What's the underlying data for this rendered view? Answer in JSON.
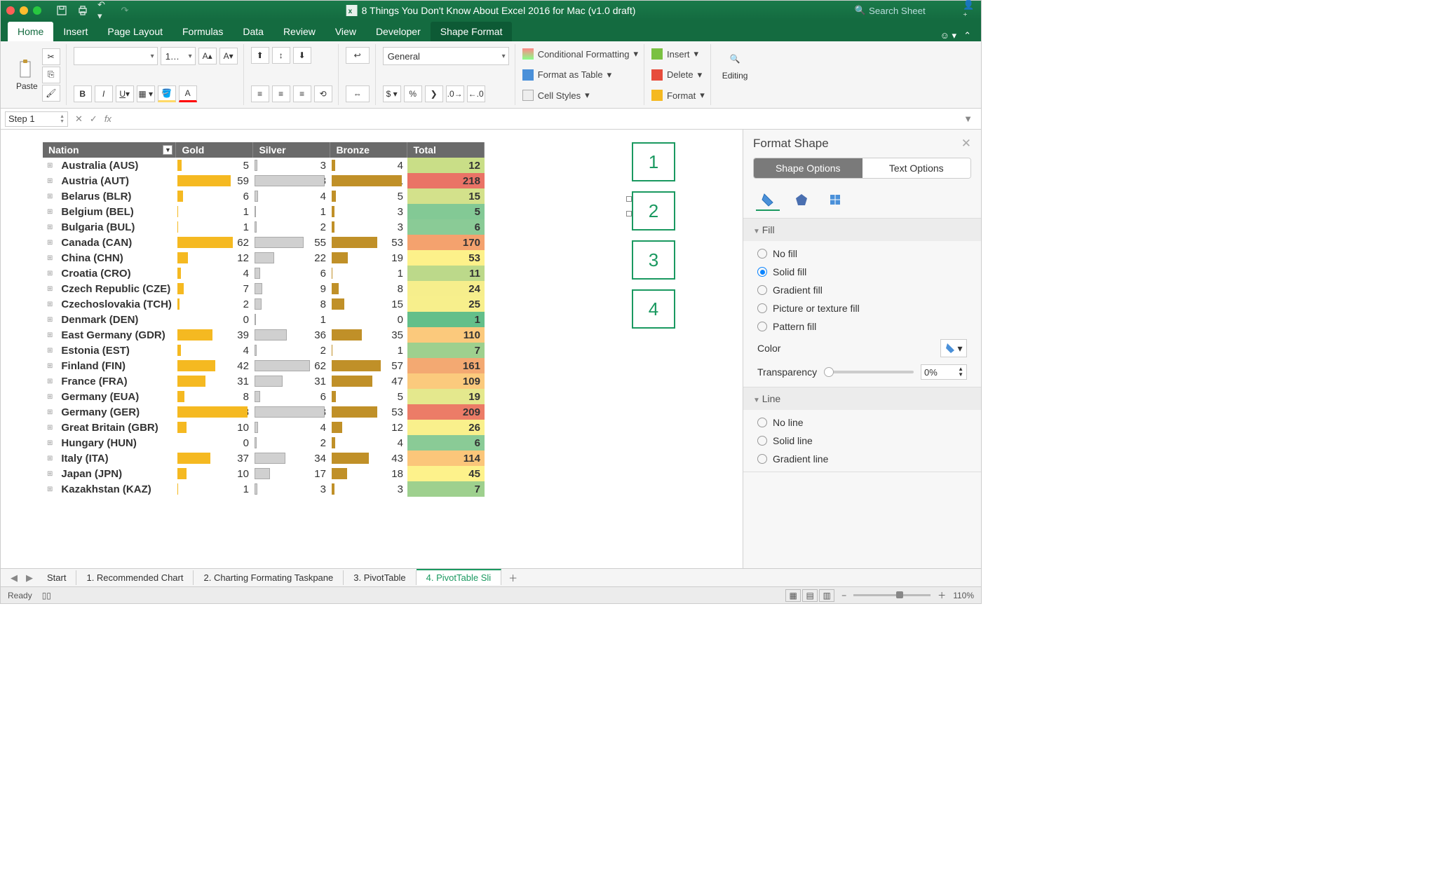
{
  "titlebar": {
    "title": "8 Things You Don't Know About Excel 2016 for Mac (v1.0 draft)",
    "search_placeholder": "Search Sheet"
  },
  "ribbon_tabs": {
    "home": "Home",
    "insert": "Insert",
    "page_layout": "Page Layout",
    "formulas": "Formulas",
    "data": "Data",
    "review": "Review",
    "view": "View",
    "developer": "Developer",
    "shape_format": "Shape Format"
  },
  "ribbon": {
    "paste": "Paste",
    "font_size": "1…",
    "number_format": "General",
    "cond_fmt": "Conditional Formatting",
    "fmt_table": "Format as Table",
    "cell_styles": "Cell Styles",
    "insert": "Insert",
    "delete": "Delete",
    "format": "Format",
    "editing": "Editing"
  },
  "fxbar": {
    "name": "Step 1"
  },
  "table": {
    "headers": {
      "nation": "Nation",
      "gold": "Gold",
      "silver": "Silver",
      "bronze": "Bronze",
      "total": "Total"
    },
    "col_widths": {
      "nation": 180,
      "medal": 110,
      "total": 110
    },
    "bar_colors": {
      "gold": "#f5b921",
      "silver": "#d0d0d0",
      "bronze": "#c09028"
    },
    "max_values": {
      "gold": 78,
      "silver": 78,
      "bronze": 81,
      "total": 218
    },
    "heat_scale": {
      "min_color": "#57bb8a",
      "mid_color": "#ffeb84",
      "max_color": "#e67c73",
      "min": 1,
      "max": 218
    },
    "rows": [
      {
        "nation": "Australia (AUS)",
        "gold": 5,
        "silver": 3,
        "bronze": 4,
        "total": 12,
        "tcolor": "#c9de87"
      },
      {
        "nation": "Austria (AUT)",
        "gold": 59,
        "silver": 78,
        "bronze": 81,
        "total": 218,
        "tcolor": "#ea7366"
      },
      {
        "nation": "Belarus (BLR)",
        "gold": 6,
        "silver": 4,
        "bronze": 5,
        "total": 15,
        "tcolor": "#d3e18b"
      },
      {
        "nation": "Belgium (BEL)",
        "gold": 1,
        "silver": 1,
        "bronze": 3,
        "total": 5,
        "tcolor": "#83c995"
      },
      {
        "nation": "Bulgaria (BUL)",
        "gold": 1,
        "silver": 2,
        "bronze": 3,
        "total": 6,
        "tcolor": "#8acb96"
      },
      {
        "nation": "Canada (CAN)",
        "gold": 62,
        "silver": 55,
        "bronze": 53,
        "total": 170,
        "tcolor": "#f4a26e"
      },
      {
        "nation": "China (CHN)",
        "gold": 12,
        "silver": 22,
        "bronze": 19,
        "total": 53,
        "tcolor": "#fdf18a"
      },
      {
        "nation": "Croatia (CRO)",
        "gold": 4,
        "silver": 6,
        "bronze": 1,
        "total": 11,
        "tcolor": "#bcd98a"
      },
      {
        "nation": "Czech Republic (CZE)",
        "gold": 7,
        "silver": 9,
        "bronze": 8,
        "total": 24,
        "tcolor": "#f6ee8c"
      },
      {
        "nation": "Czechoslovakia (TCH)",
        "gold": 2,
        "silver": 8,
        "bronze": 15,
        "total": 25,
        "tcolor": "#f7ef8c"
      },
      {
        "nation": "Denmark (DEN)",
        "gold": 0,
        "silver": 1,
        "bronze": 0,
        "total": 1,
        "tcolor": "#63bf8a"
      },
      {
        "nation": "East Germany (GDR)",
        "gold": 39,
        "silver": 36,
        "bronze": 35,
        "total": 110,
        "tcolor": "#fbc97c"
      },
      {
        "nation": "Estonia (EST)",
        "gold": 4,
        "silver": 2,
        "bronze": 1,
        "total": 7,
        "tcolor": "#9ed08e"
      },
      {
        "nation": "Finland (FIN)",
        "gold": 42,
        "silver": 62,
        "bronze": 57,
        "total": 161,
        "tcolor": "#f3a972"
      },
      {
        "nation": "France (FRA)",
        "gold": 31,
        "silver": 31,
        "bronze": 47,
        "total": 109,
        "tcolor": "#fbca7d"
      },
      {
        "nation": "Germany (EUA)",
        "gold": 8,
        "silver": 6,
        "bronze": 5,
        "total": 19,
        "tcolor": "#e4e88d"
      },
      {
        "nation": "Germany (GER)",
        "gold": 78,
        "silver": 78,
        "bronze": 53,
        "total": 209,
        "tcolor": "#ec7c67"
      },
      {
        "nation": "Great Britain (GBR)",
        "gold": 10,
        "silver": 4,
        "bronze": 12,
        "total": 26,
        "tcolor": "#f9f08c"
      },
      {
        "nation": "Hungary (HUN)",
        "gold": 0,
        "silver": 2,
        "bronze": 4,
        "total": 6,
        "tcolor": "#8acb96"
      },
      {
        "nation": "Italy (ITA)",
        "gold": 37,
        "silver": 34,
        "bronze": 43,
        "total": 114,
        "tcolor": "#fbc67a"
      },
      {
        "nation": "Japan (JPN)",
        "gold": 10,
        "silver": 17,
        "bronze": 18,
        "total": 45,
        "tcolor": "#fdf28b"
      },
      {
        "nation": "Kazakhstan (KAZ)",
        "gold": 1,
        "silver": 3,
        "bronze": 3,
        "total": 7,
        "tcolor": "#9ed08e"
      }
    ]
  },
  "slicers": [
    "1",
    "2",
    "3",
    "4"
  ],
  "pane": {
    "title": "Format Shape",
    "shape_options": "Shape Options",
    "text_options": "Text Options",
    "fill_section": "Fill",
    "fill_opts": {
      "no_fill": "No fill",
      "solid_fill": "Solid fill",
      "gradient_fill": "Gradient fill",
      "picture_fill": "Picture or texture fill",
      "pattern_fill": "Pattern fill"
    },
    "color_label": "Color",
    "transparency_label": "Transparency",
    "transparency_value": "0%",
    "line_section": "Line",
    "line_opts": {
      "no_line": "No line",
      "solid_line": "Solid line",
      "gradient_line": "Gradient line"
    }
  },
  "sheet_tabs": {
    "start": "Start",
    "t1": "1. Recommended Chart",
    "t2": "2. Charting Formating Taskpane",
    "t3": "3. PivotTable",
    "t4": "4. PivotTable Sli"
  },
  "status": {
    "ready": "Ready",
    "zoom": "110%"
  }
}
